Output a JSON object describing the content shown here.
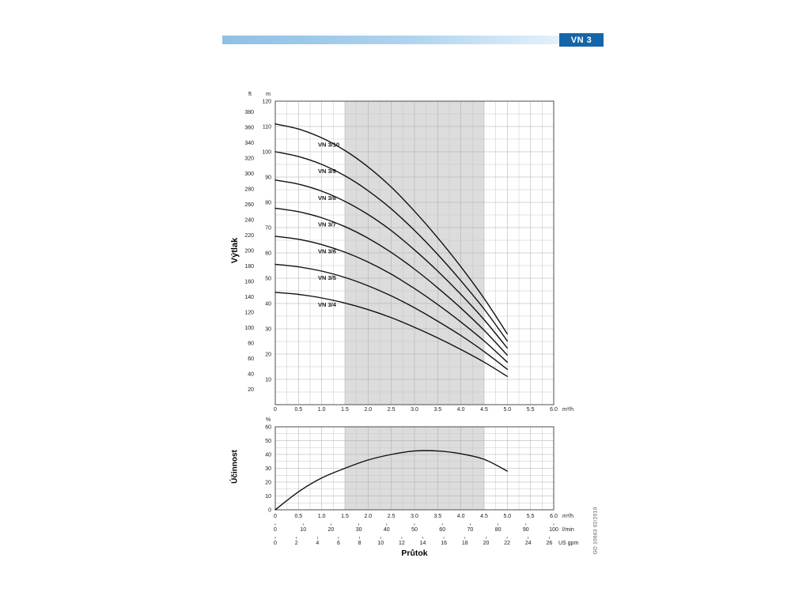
{
  "header": {
    "model": "VN 3"
  },
  "footer": {
    "code": "GD 10663  02/2010"
  },
  "colors": {
    "accent": "#1566a9",
    "band": "#dcdcdc",
    "curve": "#111111"
  },
  "axes": {
    "flow_title": "Průtok",
    "flow_unit": "m³/h",
    "lmin_unit": "l/min",
    "usgpm_unit": "US gpm",
    "flow_ticks": [
      "0",
      "0.5",
      "1.0",
      "1.5",
      "2.0",
      "2.5",
      "3.0",
      "3.5",
      "4.0",
      "4.5",
      "5.0",
      "5.5",
      "6.0"
    ],
    "flow_tick_values": [
      0,
      0.5,
      1,
      1.5,
      2,
      2.5,
      3,
      3.5,
      4,
      4.5,
      5,
      5.5,
      6
    ],
    "lmin_ticks": [
      0,
      10,
      20,
      30,
      40,
      50,
      60,
      70,
      80,
      90,
      100
    ],
    "lmin_max_flow": 100,
    "usgpm_ticks": [
      0,
      2,
      4,
      6,
      8,
      10,
      12,
      14,
      16,
      18,
      20,
      22,
      24,
      26
    ],
    "usgpm_to_m3h": 0.2271
  },
  "chart_data": [
    {
      "id": "head",
      "type": "line",
      "axis_title": "Výtlak",
      "y_unit_left": "ft",
      "y_unit_right": "m",
      "x_unit": "m³/h",
      "xlim": [
        0,
        6
      ],
      "ylim_m": [
        0,
        120
      ],
      "m_ticks": [
        10,
        20,
        30,
        40,
        50,
        60,
        70,
        80,
        90,
        100,
        110,
        120
      ],
      "ft_ticks": [
        20,
        40,
        60,
        80,
        100,
        120,
        140,
        160,
        180,
        200,
        220,
        240,
        260,
        280,
        300,
        320,
        340,
        360,
        380
      ],
      "ft_per_m": 3.2808,
      "band_x": [
        1.5,
        4.5
      ],
      "x": [
        0,
        0.5,
        1,
        1.5,
        2,
        2.5,
        3,
        3.5,
        4,
        4.5,
        5
      ],
      "series": [
        {
          "name": "VN 3/10",
          "values": [
            111,
            109,
            105.5,
            100.5,
            94,
            86,
            76.5,
            66,
            54.5,
            42,
            28
          ]
        },
        {
          "name": "VN 3/9",
          "values": [
            100,
            98.1,
            95,
            90.5,
            84.6,
            77.4,
            68.9,
            59.4,
            49,
            37.8,
            25.2
          ]
        },
        {
          "name": "VN 3/8",
          "values": [
            88.8,
            87.2,
            84.4,
            80.4,
            75.2,
            68.8,
            61.2,
            52.8,
            43.6,
            33.6,
            22.4
          ]
        },
        {
          "name": "VN 3/7",
          "values": [
            77.7,
            76.3,
            73.9,
            70.4,
            65.8,
            60.2,
            53.6,
            46.2,
            38.2,
            29.4,
            19.6
          ]
        },
        {
          "name": "VN 3/6",
          "values": [
            66.6,
            65.4,
            63.3,
            60.3,
            56.4,
            51.6,
            45.9,
            39.6,
            32.7,
            25.2,
            16.8
          ]
        },
        {
          "name": "VN 3/5",
          "values": [
            55.5,
            54.5,
            52.8,
            50.3,
            47,
            43,
            38.3,
            33,
            27.3,
            21,
            14
          ]
        },
        {
          "name": "VN 3/4",
          "values": [
            44.4,
            43.6,
            42.2,
            40.2,
            37.6,
            34.4,
            30.6,
            26.4,
            21.8,
            16.8,
            11.2
          ]
        }
      ]
    },
    {
      "id": "efficiency",
      "type": "line",
      "axis_title": "Účinnost",
      "y_unit": "%",
      "xlim": [
        0,
        6
      ],
      "ylim": [
        0,
        60
      ],
      "y_ticks": [
        0,
        10,
        20,
        30,
        40,
        50,
        60
      ],
      "band_x": [
        1.5,
        4.5
      ],
      "x": [
        0,
        0.5,
        1,
        1.5,
        2,
        2.5,
        3,
        3.5,
        4,
        4.5,
        5
      ],
      "series": [
        {
          "name": "Účinnost",
          "values": [
            0,
            13,
            23,
            30,
            36,
            40,
            42.5,
            42.5,
            40.5,
            36.5,
            28
          ]
        }
      ]
    }
  ]
}
